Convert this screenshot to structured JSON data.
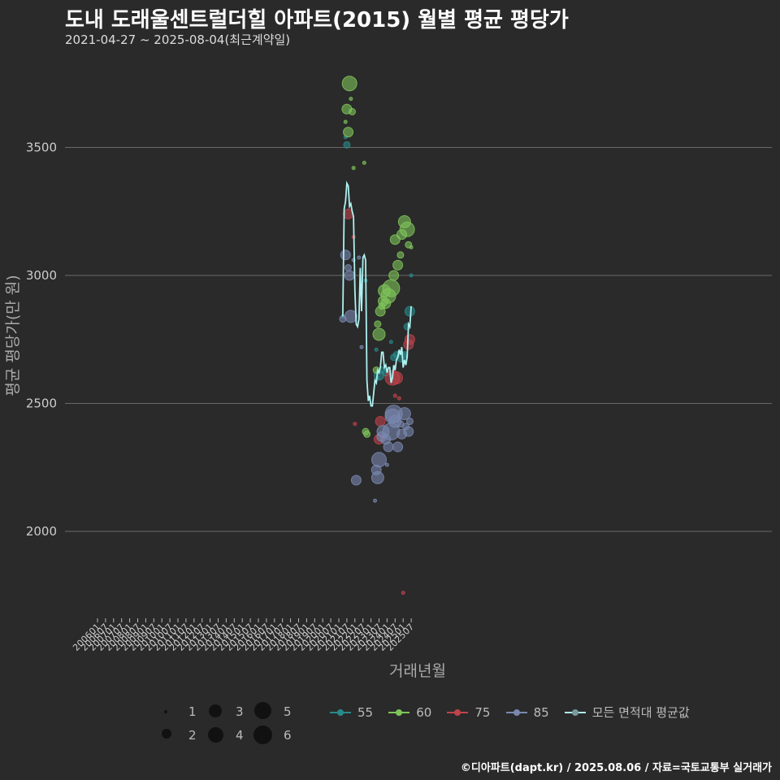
{
  "title": "도내 도래울센트럴더힐 아파트(2015) 월별 평균 평당가",
  "subtitle": "2021-04-27 ~ 2025-08-04(최근계약일)",
  "caption": "©디아파트(dapt.kr) / 2025.08.06 / 자료=국토교통부 실거래가",
  "colors": {
    "background": "#2a2a2a",
    "grid": "#6a6a6a",
    "s55": "#2a8a8a",
    "s60": "#7fc45a",
    "s75": "#c0434b",
    "s85": "#7a88b0",
    "avg": "#aef0f0"
  },
  "legend": {
    "size_title": "",
    "sizes": [
      "1",
      "2",
      "3",
      "4",
      "5",
      "6"
    ],
    "series_labels": [
      "55",
      "60",
      "75",
      "85",
      "모든 면적대 평균값"
    ]
  },
  "chart_data": {
    "type": "scatter",
    "title": "도내 도래울센트럴더힐 아파트(2015) 월별 평균 평당가",
    "xlabel": "거래년월",
    "ylabel": "평균 평당가(만 원)",
    "ylim": [
      1650,
      3800
    ],
    "yticks": [
      2000,
      2500,
      3000,
      3500
    ],
    "grid": true,
    "legend_position": "bottom",
    "x_ticks": [
      "200601",
      "200607",
      "200701",
      "200707",
      "200801",
      "200807",
      "200901",
      "200907",
      "201001",
      "201007",
      "201101",
      "201107",
      "201201",
      "201207",
      "201301",
      "201307",
      "201401",
      "201407",
      "201501",
      "201507",
      "201601",
      "201607",
      "201701",
      "201707",
      "201801",
      "201807",
      "201901",
      "201907",
      "202001",
      "202007",
      "202101",
      "202107",
      "202201",
      "202207",
      "202301",
      "202307",
      "202401",
      "202407",
      "202501",
      "202507"
    ],
    "size_meaning": "거래건수",
    "series": [
      {
        "name": "55",
        "points": [
          {
            "x": "202104",
            "y": 2840,
            "n": 1
          },
          {
            "x": "202106",
            "y": 3540,
            "n": 1
          },
          {
            "x": "202107",
            "y": 3510,
            "n": 2
          },
          {
            "x": "202209",
            "y": 2980,
            "n": 1
          },
          {
            "x": "202305",
            "y": 2710,
            "n": 1
          },
          {
            "x": "202306",
            "y": 2600,
            "n": 1
          },
          {
            "x": "202307",
            "y": 2610,
            "n": 3
          },
          {
            "x": "202309",
            "y": 2630,
            "n": 2
          },
          {
            "x": "202312",
            "y": 2620,
            "n": 2
          },
          {
            "x": "202404",
            "y": 2740,
            "n": 1
          },
          {
            "x": "202406",
            "y": 2680,
            "n": 2
          },
          {
            "x": "202408",
            "y": 2690,
            "n": 2
          },
          {
            "x": "202410",
            "y": 2700,
            "n": 1
          },
          {
            "x": "202412",
            "y": 2680,
            "n": 3
          },
          {
            "x": "202502",
            "y": 2690,
            "n": 2
          },
          {
            "x": "202504",
            "y": 2800,
            "n": 2
          },
          {
            "x": "202506",
            "y": 2860,
            "n": 3
          },
          {
            "x": "202507",
            "y": 3000,
            "n": 1
          }
        ]
      },
      {
        "name": "60",
        "points": [
          {
            "x": "202106",
            "y": 3600,
            "n": 1
          },
          {
            "x": "202107",
            "y": 3650,
            "n": 3
          },
          {
            "x": "202108",
            "y": 3560,
            "n": 3
          },
          {
            "x": "202109",
            "y": 3750,
            "n": 5
          },
          {
            "x": "202110",
            "y": 3690,
            "n": 1
          },
          {
            "x": "202111",
            "y": 3640,
            "n": 2
          },
          {
            "x": "202112",
            "y": 3420,
            "n": 1
          },
          {
            "x": "202208",
            "y": 3440,
            "n": 1
          },
          {
            "x": "202209",
            "y": 2390,
            "n": 2
          },
          {
            "x": "202210",
            "y": 2380,
            "n": 2
          },
          {
            "x": "202305",
            "y": 2630,
            "n": 2
          },
          {
            "x": "202306",
            "y": 2810,
            "n": 2
          },
          {
            "x": "202307",
            "y": 2770,
            "n": 4
          },
          {
            "x": "202308",
            "y": 2860,
            "n": 3
          },
          {
            "x": "202309",
            "y": 2880,
            "n": 2
          },
          {
            "x": "202310",
            "y": 2900,
            "n": 3
          },
          {
            "x": "202311",
            "y": 2940,
            "n": 4
          },
          {
            "x": "202312",
            "y": 2890,
            "n": 3
          },
          {
            "x": "202402",
            "y": 2920,
            "n": 5
          },
          {
            "x": "202404",
            "y": 2950,
            "n": 6
          },
          {
            "x": "202406",
            "y": 3000,
            "n": 3
          },
          {
            "x": "202407",
            "y": 3140,
            "n": 3
          },
          {
            "x": "202409",
            "y": 3040,
            "n": 3
          },
          {
            "x": "202411",
            "y": 3080,
            "n": 2
          },
          {
            "x": "202412",
            "y": 3160,
            "n": 3
          },
          {
            "x": "202502",
            "y": 3210,
            "n": 4
          },
          {
            "x": "202504",
            "y": 3180,
            "n": 5
          },
          {
            "x": "202505",
            "y": 3120,
            "n": 2
          },
          {
            "x": "202507",
            "y": 3110,
            "n": 1
          }
        ]
      },
      {
        "name": "75",
        "points": [
          {
            "x": "202108",
            "y": 3240,
            "n": 3
          },
          {
            "x": "202112",
            "y": 3150,
            "n": 1
          },
          {
            "x": "202201",
            "y": 2420,
            "n": 1
          },
          {
            "x": "202307",
            "y": 2360,
            "n": 3
          },
          {
            "x": "202308",
            "y": 2430,
            "n": 3
          },
          {
            "x": "202405",
            "y": 2600,
            "n": 5
          },
          {
            "x": "202407",
            "y": 2530,
            "n": 1
          },
          {
            "x": "202408",
            "y": 2600,
            "n": 4
          },
          {
            "x": "202410",
            "y": 2520,
            "n": 1
          },
          {
            "x": "202501",
            "y": 1760,
            "n": 1
          },
          {
            "x": "202505",
            "y": 2730,
            "n": 3
          },
          {
            "x": "202506",
            "y": 2750,
            "n": 3
          }
        ]
      },
      {
        "name": "85",
        "points": [
          {
            "x": "202104",
            "y": 2830,
            "n": 2
          },
          {
            "x": "202106",
            "y": 3080,
            "n": 3
          },
          {
            "x": "202108",
            "y": 3030,
            "n": 2
          },
          {
            "x": "202109",
            "y": 3000,
            "n": 3
          },
          {
            "x": "202110",
            "y": 2840,
            "n": 4
          },
          {
            "x": "202112",
            "y": 3060,
            "n": 1
          },
          {
            "x": "202202",
            "y": 2200,
            "n": 3
          },
          {
            "x": "202204",
            "y": 3070,
            "n": 1
          },
          {
            "x": "202206",
            "y": 2720,
            "n": 1
          },
          {
            "x": "202304",
            "y": 2120,
            "n": 1
          },
          {
            "x": "202305",
            "y": 2240,
            "n": 3
          },
          {
            "x": "202306",
            "y": 2210,
            "n": 4
          },
          {
            "x": "202307",
            "y": 2280,
            "n": 5
          },
          {
            "x": "202309",
            "y": 2370,
            "n": 3
          },
          {
            "x": "202310",
            "y": 2390,
            "n": 4
          },
          {
            "x": "202312",
            "y": 2360,
            "n": 3
          },
          {
            "x": "202401",
            "y": 2260,
            "n": 1
          },
          {
            "x": "202402",
            "y": 2330,
            "n": 3
          },
          {
            "x": "202404",
            "y": 2390,
            "n": 6
          },
          {
            "x": "202405",
            "y": 2450,
            "n": 5
          },
          {
            "x": "202406",
            "y": 2460,
            "n": 6
          },
          {
            "x": "202407",
            "y": 2430,
            "n": 4
          },
          {
            "x": "202409",
            "y": 2330,
            "n": 3
          },
          {
            "x": "202411",
            "y": 2420,
            "n": 2
          },
          {
            "x": "202412",
            "y": 2380,
            "n": 3
          },
          {
            "x": "202502",
            "y": 2460,
            "n": 4
          },
          {
            "x": "202503",
            "y": 2410,
            "n": 2
          },
          {
            "x": "202505",
            "y": 2390,
            "n": 3
          },
          {
            "x": "202506",
            "y": 2430,
            "n": 2
          }
        ]
      },
      {
        "name": "모든 면적대 평균값",
        "line": true,
        "x": [
          "202104",
          "202105",
          "202106",
          "202107",
          "202108",
          "202109",
          "202110",
          "202111",
          "202112",
          "202201",
          "202202",
          "202203",
          "202204",
          "202205",
          "202206",
          "202207",
          "202208",
          "202209",
          "202210",
          "202211",
          "202212",
          "202301",
          "202302",
          "202303",
          "202304",
          "202305",
          "202306",
          "202307",
          "202308",
          "202309",
          "202310",
          "202311",
          "202312",
          "202401",
          "202402",
          "202403",
          "202404",
          "202405",
          "202406",
          "202407",
          "202408",
          "202409",
          "202410",
          "202411",
          "202412",
          "202501",
          "202502",
          "202503",
          "202504",
          "202505",
          "202506",
          "202507"
        ],
        "y": [
          2840,
          3260,
          3290,
          3360,
          3350,
          3270,
          3280,
          3250,
          3230,
          2940,
          2810,
          2800,
          2830,
          3030,
          2860,
          3070,
          3080,
          3060,
          2590,
          2510,
          2530,
          2490,
          2490,
          2540,
          2590,
          2580,
          2630,
          2620,
          2640,
          2700,
          2700,
          2640,
          2650,
          2620,
          2640,
          2640,
          2580,
          2600,
          2650,
          2630,
          2670,
          2680,
          2710,
          2690,
          2720,
          2640,
          2670,
          2650,
          2680,
          2810,
          2800,
          2880
        ]
      }
    ]
  }
}
